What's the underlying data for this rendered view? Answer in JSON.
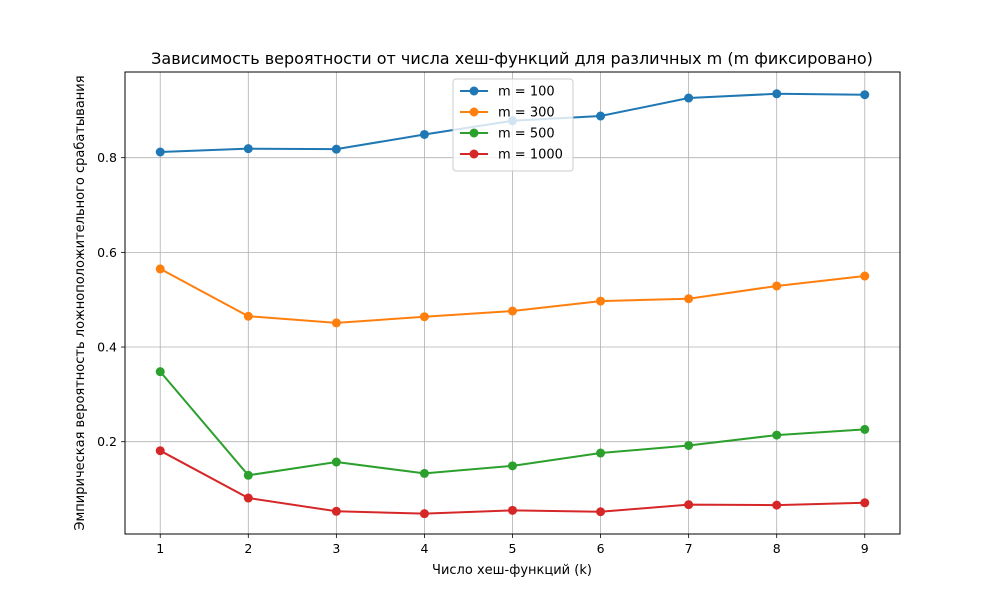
{
  "chart_data": {
    "type": "line",
    "title": "Зависимость вероятности от числа хеш-функций для различных m (m фиксировано)",
    "xlabel": "Число хеш-функций (k)",
    "ylabel": "Эмпирическая вероятность ложноположительного срабатывания",
    "x": [
      1,
      2,
      3,
      4,
      5,
      6,
      7,
      8,
      9
    ],
    "xlim": [
      0.6,
      9.4
    ],
    "ylim": [
      0.005,
      0.981
    ],
    "xticks": [
      1,
      2,
      3,
      4,
      5,
      6,
      7,
      8,
      9
    ],
    "yticks": [
      0.2,
      0.4,
      0.6,
      0.8
    ],
    "grid": true,
    "legend_position": "top-center",
    "series": [
      {
        "name": "m = 100",
        "color": "#1f77b4",
        "values": [
          0.812,
          0.819,
          0.818,
          0.849,
          0.878,
          0.888,
          0.926,
          0.935,
          0.933
        ]
      },
      {
        "name": "m = 300",
        "color": "#ff7f0e",
        "values": [
          0.565,
          0.465,
          0.451,
          0.464,
          0.476,
          0.497,
          0.502,
          0.529,
          0.55
        ]
      },
      {
        "name": "m = 500",
        "color": "#2ca02c",
        "values": [
          0.348,
          0.129,
          0.157,
          0.133,
          0.149,
          0.176,
          0.192,
          0.214,
          0.226
        ]
      },
      {
        "name": "m = 1000",
        "color": "#d62728",
        "values": [
          0.181,
          0.081,
          0.053,
          0.048,
          0.055,
          0.052,
          0.067,
          0.066,
          0.071
        ]
      }
    ]
  }
}
